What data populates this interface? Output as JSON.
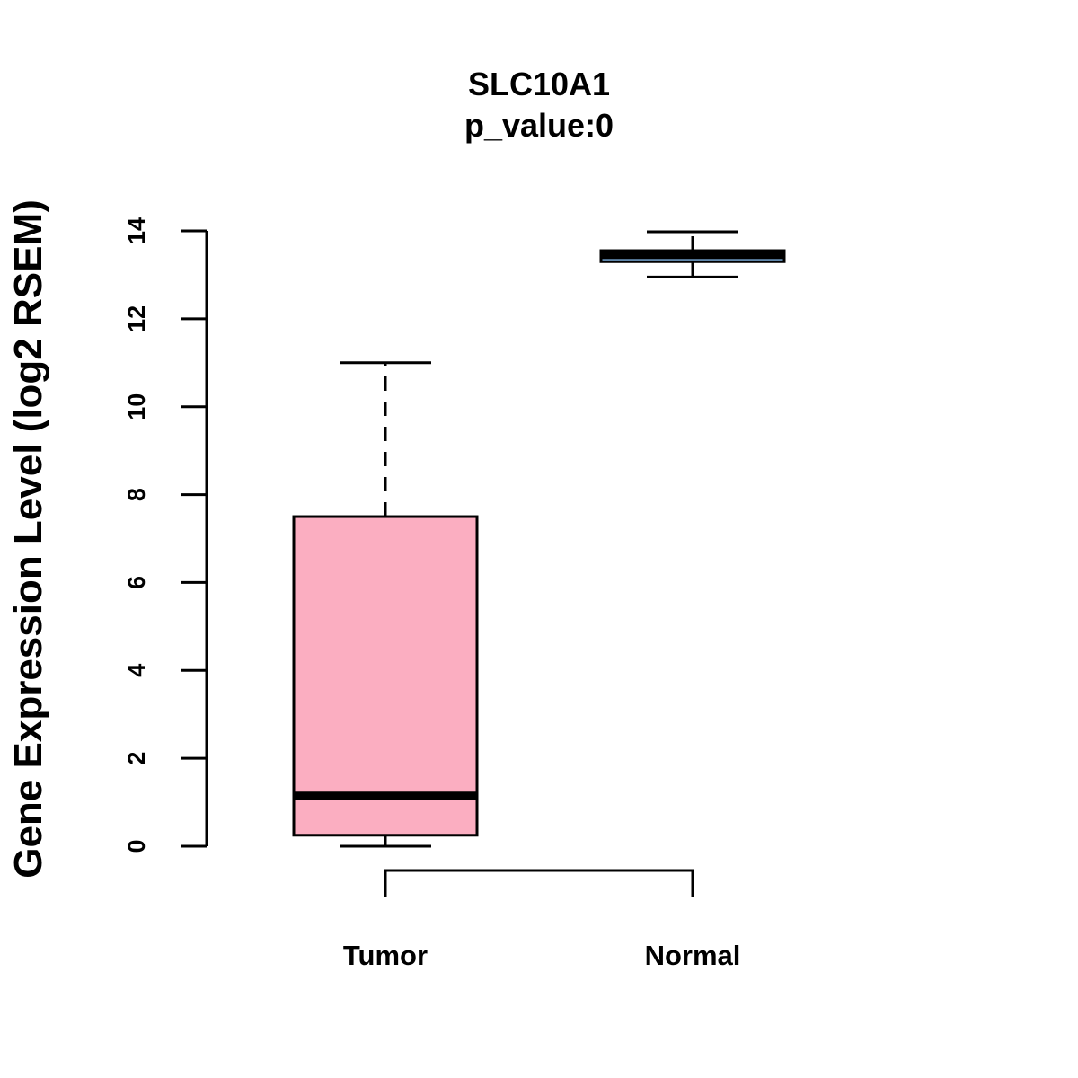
{
  "chart_data": {
    "type": "boxplot",
    "title": "SLC10A1",
    "subtitle": "p_value:0",
    "xlabel": "",
    "ylabel": "Gene Expression Level (log2 RSEM)",
    "ylim": [
      0,
      14
    ],
    "yticks": [
      0,
      2,
      4,
      6,
      8,
      10,
      12,
      14
    ],
    "categories": [
      "Tumor",
      "Normal"
    ],
    "series": [
      {
        "name": "Tumor",
        "color": "#FBAEC1",
        "whisker_low": 0,
        "q1": 0.25,
        "median": 1.15,
        "q3": 7.5,
        "whisker_high": 11
      },
      {
        "name": "Normal",
        "color": "#7FB3E3",
        "whisker_low": 12.95,
        "q1": 13.3,
        "median": 13.45,
        "q3": 13.55,
        "whisker_high": 13.98
      }
    ],
    "comparison_bracket": [
      "Tumor",
      "Normal"
    ],
    "grid": false,
    "legend": "none"
  }
}
